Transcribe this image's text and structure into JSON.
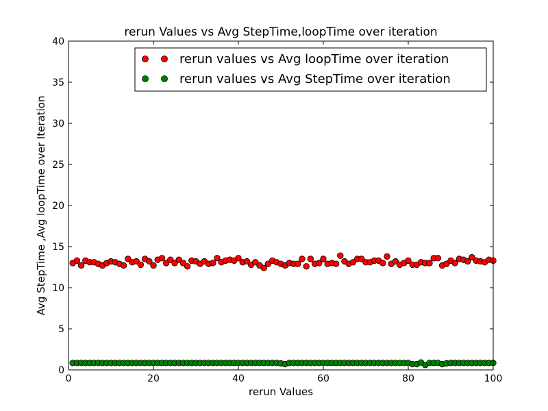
{
  "chart_data": {
    "type": "scatter",
    "title": "rerun Values vs Avg StepTime,loopTime over iteration",
    "xlabel": "rerun Values",
    "ylabel": "Avg StepTime ,Avg loopTime over Iteration",
    "xlim": [
      0,
      100
    ],
    "ylim": [
      0,
      40
    ],
    "xticks": [
      0,
      20,
      40,
      60,
      80,
      100
    ],
    "yticks": [
      0,
      5,
      10,
      15,
      20,
      25,
      30,
      35,
      40
    ],
    "grid": false,
    "legend_position": "top-right",
    "series": [
      {
        "name": "rerun values vs Avg loopTime over iteration",
        "color": "#ff0000",
        "marker": "circle",
        "x": [
          1,
          2,
          3,
          4,
          5,
          6,
          7,
          8,
          9,
          10,
          11,
          12,
          13,
          14,
          15,
          16,
          17,
          18,
          19,
          20,
          21,
          22,
          23,
          24,
          25,
          26,
          27,
          28,
          29,
          30,
          31,
          32,
          33,
          34,
          35,
          36,
          37,
          38,
          39,
          40,
          41,
          42,
          43,
          44,
          45,
          46,
          47,
          48,
          49,
          50,
          51,
          52,
          53,
          54,
          55,
          56,
          57,
          58,
          59,
          60,
          61,
          62,
          63,
          64,
          65,
          66,
          67,
          68,
          69,
          70,
          71,
          72,
          73,
          74,
          75,
          76,
          77,
          78,
          79,
          80,
          81,
          82,
          83,
          84,
          85,
          86,
          87,
          88,
          89,
          90,
          91,
          92,
          93,
          94,
          95,
          96,
          97,
          98,
          99,
          100
        ],
        "y": [
          13.0,
          13.3,
          12.7,
          13.3,
          13.1,
          13.1,
          12.9,
          12.7,
          13.0,
          13.2,
          13.1,
          12.9,
          12.7,
          13.5,
          13.1,
          13.2,
          12.8,
          13.5,
          13.2,
          12.7,
          13.4,
          13.6,
          13.0,
          13.4,
          13.0,
          13.4,
          13.0,
          12.6,
          13.3,
          13.2,
          12.9,
          13.2,
          12.9,
          13.0,
          13.6,
          13.1,
          13.3,
          13.4,
          13.3,
          13.6,
          13.1,
          13.2,
          12.8,
          13.1,
          12.7,
          12.4,
          12.9,
          13.3,
          13.1,
          12.9,
          12.7,
          13.0,
          12.9,
          12.9,
          13.5,
          12.6,
          13.5,
          12.9,
          13.0,
          13.5,
          12.9,
          13.0,
          12.9,
          13.9,
          13.2,
          12.9,
          13.1,
          13.5,
          13.5,
          13.1,
          13.1,
          13.3,
          13.3,
          13.0,
          13.8,
          12.9,
          13.2,
          12.8,
          13.0,
          13.3,
          12.8,
          12.8,
          13.1,
          13.0,
          13.0,
          13.6,
          13.6,
          12.7,
          12.9,
          13.3,
          13.0,
          13.5,
          13.4,
          13.2,
          13.7,
          13.3,
          13.2,
          13.1,
          13.4,
          13.3
        ]
      },
      {
        "name": "rerun values vs Avg StepTime over iteration",
        "color": "#008000",
        "marker": "circle",
        "x": [
          1,
          2,
          3,
          4,
          5,
          6,
          7,
          8,
          9,
          10,
          11,
          12,
          13,
          14,
          15,
          16,
          17,
          18,
          19,
          20,
          21,
          22,
          23,
          24,
          25,
          26,
          27,
          28,
          29,
          30,
          31,
          32,
          33,
          34,
          35,
          36,
          37,
          38,
          39,
          40,
          41,
          42,
          43,
          44,
          45,
          46,
          47,
          48,
          49,
          50,
          51,
          52,
          53,
          54,
          55,
          56,
          57,
          58,
          59,
          60,
          61,
          62,
          63,
          64,
          65,
          66,
          67,
          68,
          69,
          70,
          71,
          72,
          73,
          74,
          75,
          76,
          77,
          78,
          79,
          80,
          81,
          82,
          83,
          84,
          85,
          86,
          87,
          88,
          89,
          90,
          91,
          92,
          93,
          94,
          95,
          96,
          97,
          98,
          99,
          100
        ],
        "y": [
          0.85,
          0.85,
          0.85,
          0.85,
          0.85,
          0.85,
          0.85,
          0.85,
          0.85,
          0.85,
          0.85,
          0.85,
          0.85,
          0.85,
          0.85,
          0.85,
          0.85,
          0.85,
          0.85,
          0.85,
          0.85,
          0.85,
          0.85,
          0.85,
          0.85,
          0.85,
          0.85,
          0.85,
          0.85,
          0.85,
          0.85,
          0.85,
          0.85,
          0.85,
          0.85,
          0.85,
          0.85,
          0.85,
          0.85,
          0.85,
          0.85,
          0.85,
          0.85,
          0.85,
          0.85,
          0.85,
          0.85,
          0.85,
          0.85,
          0.8,
          0.7,
          0.85,
          0.85,
          0.85,
          0.85,
          0.85,
          0.85,
          0.85,
          0.85,
          0.85,
          0.85,
          0.85,
          0.85,
          0.85,
          0.85,
          0.85,
          0.85,
          0.85,
          0.85,
          0.85,
          0.85,
          0.85,
          0.85,
          0.85,
          0.85,
          0.85,
          0.85,
          0.85,
          0.85,
          0.85,
          0.7,
          0.7,
          0.9,
          0.6,
          0.85,
          0.85,
          0.85,
          0.7,
          0.8,
          0.85,
          0.85,
          0.85,
          0.85,
          0.85,
          0.85,
          0.85,
          0.85,
          0.85,
          0.85,
          0.85
        ]
      }
    ]
  }
}
